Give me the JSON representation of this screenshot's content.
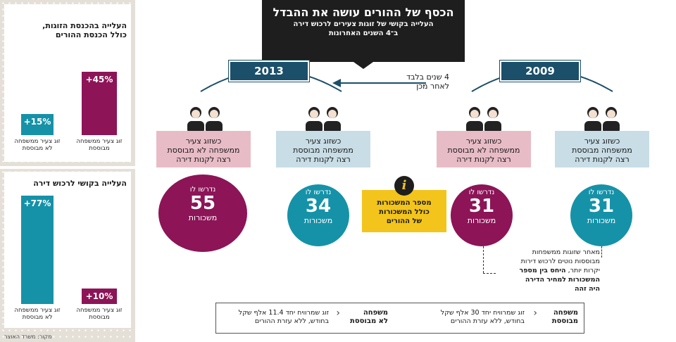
{
  "header": {
    "title": "הכסף של ההורים עושה את ההבדל",
    "subtitle_line1": "העלייה בקושי של זוגות צעירים לרכוש דירה",
    "subtitle_line2": "ב־4 השנים האחרונות"
  },
  "timeline": {
    "year_left": "2013",
    "year_right": "2009",
    "arrow_text_line1": "4 שנים בלבד",
    "arrow_text_line2": "לאחר מכן"
  },
  "groups": [
    {
      "box_line1": "כשזוג צעיר",
      "box_line2": "ממשפחה לא מבוססת",
      "box_line3": "רצה לקנות דירה",
      "top": "נדרשו לו",
      "number": "55",
      "bottom": "משכורות"
    },
    {
      "box_line1": "כשזוג צעיר",
      "box_line2": "ממשפחה מבוססת",
      "box_line3": "רצה לקנות דירה",
      "top": "נדרשו לו",
      "number": "34",
      "bottom": "משכורות"
    },
    {
      "box_line1": "כשזוג צעיר",
      "box_line2": "ממשפחה לא מבוססת",
      "box_line3": "רצה לקנות דירה",
      "top": "נדרשו לו",
      "number": "31",
      "bottom": "משכורות"
    },
    {
      "box_line1": "כשזוג צעיר",
      "box_line2": "ממשפחה מבוססת",
      "box_line3": "רצה לקנות דירה",
      "top": "נדרשו לו",
      "number": "31",
      "bottom": "משכורות"
    }
  ],
  "info_box": {
    "icon": "i",
    "line1": "מספר המשכורות",
    "line2": "כולל המשכורות",
    "line3": "של ההורים"
  },
  "note": {
    "line1": "מאחר שזוגות ממשפחות",
    "line2": "מבוססות נוטים לרכוש דירות",
    "line3_plain": "יקרות יותר,",
    "line3_bold": "היחס בין מספר",
    "line4": "המשכורות למחיר הדירה",
    "line5": "היה זהה"
  },
  "legend": {
    "right_title1": "משפחה",
    "right_title2": "מבוססת",
    "right_text1": "זוג שמרוויח יחד 30 אלף שקל",
    "right_text2": "בחודש, ללא עזרת ההורים",
    "left_title1": "משפחה",
    "left_title2": "לא מבוססת",
    "left_text1": "זוג שמרוויח יחד 11.4 אלף שקל",
    "left_text2": "בחודש, ללא עזרת ההורים"
  },
  "panel_income": {
    "title_line1": "העלייה בהכנסת הזוגות,",
    "title_line2": "כולל הכנסת ההורים",
    "bars": [
      {
        "value_label": "+45%",
        "value": 45,
        "label_line1": "זוג צעיר ממשפחה",
        "label_line2": "מבוססת",
        "color": "#8c1457"
      },
      {
        "value_label": "+15%",
        "value": 15,
        "label_line1": "זוג צעיר ממשפחה",
        "label_line2": "לא מבוססת",
        "color": "#1592a8"
      }
    ]
  },
  "panel_difficulty": {
    "title": "העלייה בקושי לרכוש דירה",
    "bars": [
      {
        "value_label": "+10%",
        "value": 10,
        "label_line1": "זוג צעיר ממשפחה",
        "label_line2": "מבוססת",
        "color": "#8c1457"
      },
      {
        "value_label": "+77%",
        "value": 77,
        "label_line1": "זוג צעיר ממשפחה",
        "label_line2": "לא מבוססת",
        "color": "#1592a8"
      }
    ]
  },
  "source": "מקור: משרד האוצר",
  "colors": {
    "teal": "#1592a8",
    "plum": "#8c1457",
    "navy": "#1b4f6a",
    "yellow": "#f3c41b"
  }
}
